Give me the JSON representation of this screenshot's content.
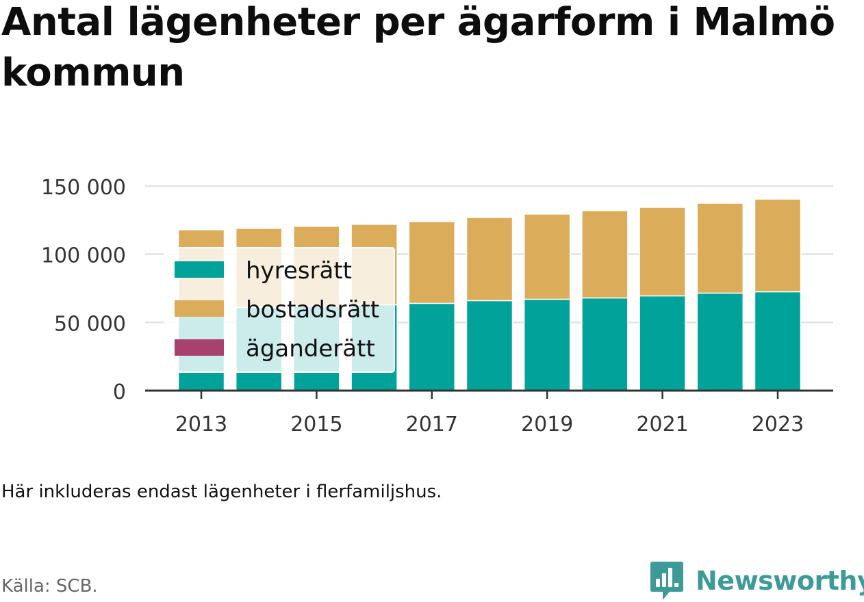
{
  "title": "Antal lägenheter per ägarform i Malmö kommun",
  "note": "Här inkluderas endast lägenheter i flerfamiljshus.",
  "source": "Källa: SCB.",
  "brand": "Newsworthy",
  "colors": {
    "hyresratt": "#00a29a",
    "bostadsratt": "#dbac5a",
    "aganderatt": "#a8416b",
    "grid": "#e2e2e2",
    "axis": "#333333",
    "brand": "#3d9a98"
  },
  "chart_data": {
    "type": "bar",
    "stacked": true,
    "categories": [
      "2013",
      "2014",
      "2015",
      "2016",
      "2017",
      "2018",
      "2019",
      "2020",
      "2021",
      "2022",
      "2023"
    ],
    "xticks": [
      "2013",
      "2015",
      "2017",
      "2019",
      "2021",
      "2023"
    ],
    "yticks": [
      0,
      50000,
      100000,
      150000
    ],
    "ytick_labels": [
      "0",
      "50 000",
      "100 000",
      "150 000"
    ],
    "ylim": [
      0,
      150000
    ],
    "grid": true,
    "legend": {
      "position": "top-left",
      "entries": [
        "hyresrätt",
        "bostadsrätt",
        "äganderätt"
      ]
    },
    "series": [
      {
        "name": "hyresrätt",
        "color": "#00a29a",
        "values": [
          60000,
          61000,
          62000,
          63000,
          64000,
          66000,
          67000,
          68000,
          69500,
          71500,
          72500
        ]
      },
      {
        "name": "bostadsrätt",
        "color": "#dbac5a",
        "values": [
          58000,
          58000,
          58500,
          59000,
          60000,
          61000,
          62500,
          64000,
          65000,
          66000,
          68000
        ]
      },
      {
        "name": "äganderätt",
        "color": "#a8416b",
        "values": [
          100,
          100,
          100,
          100,
          100,
          100,
          100,
          100,
          100,
          100,
          100
        ]
      }
    ]
  }
}
